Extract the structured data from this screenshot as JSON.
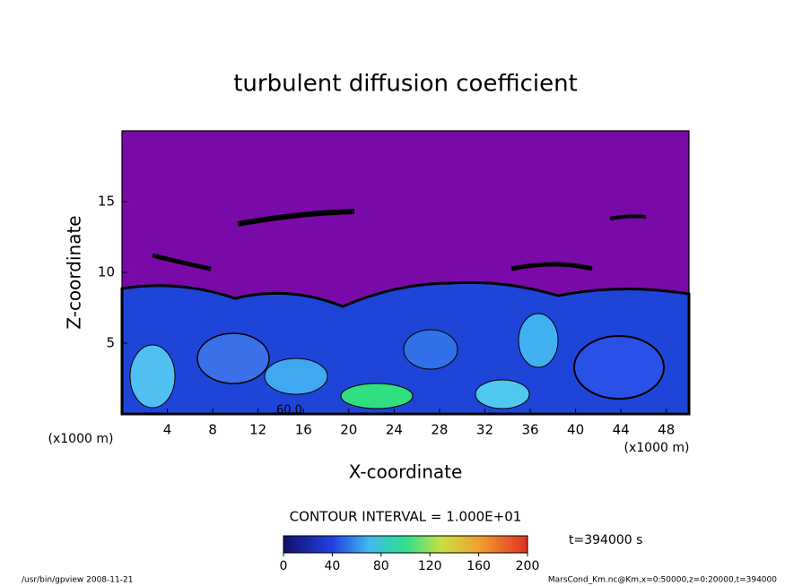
{
  "chart_data": {
    "type": "contour",
    "title": "turbulent diffusion coefficient",
    "xlabel": "X-coordinate",
    "ylabel": "Z-coordinate",
    "x_unit": "(x1000 m)",
    "xlim": [
      0,
      50
    ],
    "xticks": [
      4,
      8,
      12,
      16,
      20,
      24,
      28,
      32,
      36,
      40,
      44,
      48
    ],
    "ylim": [
      0,
      20
    ],
    "yticks": [
      5,
      10,
      15
    ],
    "contour_label": "60.0",
    "contour_interval": "CONTOUR INTERVAL = 1.000E+01",
    "colorbar_lim": [
      0,
      200
    ],
    "colorbar_ticks": [
      0,
      40,
      80,
      120,
      160,
      200
    ],
    "time_label": "t=394000 s",
    "footer_left": "/usr/bin/gpview  2008-11-21",
    "footer_right": "MarsCond_Km.nc@Km,x=0:50000,z=0:20000,t=394000"
  }
}
